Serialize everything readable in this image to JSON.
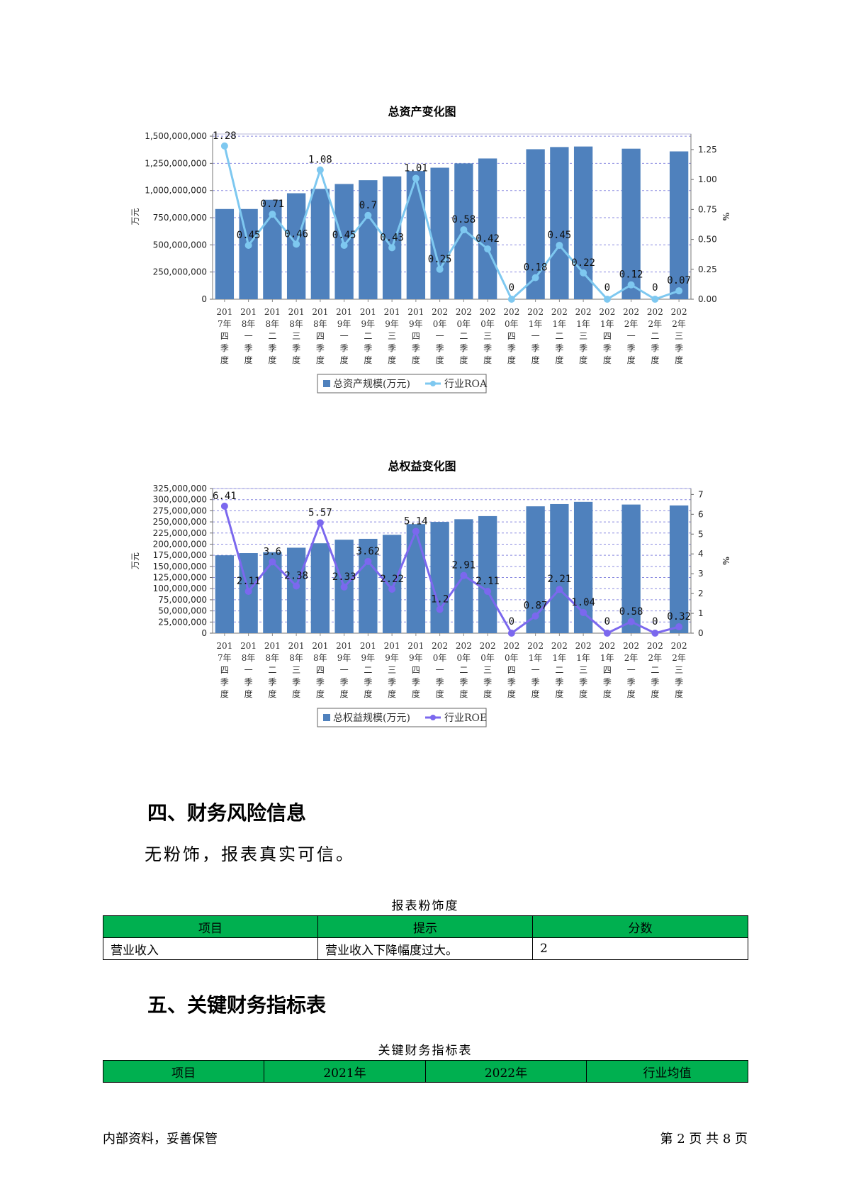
{
  "charts": [
    {
      "title": "总资产变化图",
      "left_unit": "万元",
      "right_unit": "%",
      "categories": [
        "2017年四季度",
        "2018年一季度",
        "2018年二季度",
        "2018年三季度",
        "2018年四季度",
        "2019年一季度",
        "2019年二季度",
        "2019年三季度",
        "2019年四季度",
        "2020年一季度",
        "2020年二季度",
        "2020年三季度",
        "2020年四季度",
        "2021年一季度",
        "2021年二季度",
        "2021年三季度",
        "2021年四季度",
        "2022年一季度",
        "2022年二季度",
        "2022年三季度"
      ],
      "x_tick_lines": [
        [
          "201",
          "7年",
          "四",
          "季",
          "度"
        ],
        [
          "201",
          "8年",
          "一",
          "季",
          "度"
        ],
        [
          "201",
          "8年",
          "二",
          "季",
          "度"
        ],
        [
          "201",
          "8年",
          "三",
          "季",
          "度"
        ],
        [
          "201",
          "8年",
          "四",
          "季",
          "度"
        ],
        [
          "201",
          "9年",
          "一",
          "季",
          "度"
        ],
        [
          "201",
          "9年",
          "二",
          "季",
          "度"
        ],
        [
          "201",
          "9年",
          "三",
          "季",
          "度"
        ],
        [
          "201",
          "9年",
          "四",
          "季",
          "度"
        ],
        [
          "202",
          "0年",
          "一",
          "季",
          "度"
        ],
        [
          "202",
          "0年",
          "二",
          "季",
          "度"
        ],
        [
          "202",
          "0年",
          "三",
          "季",
          "度"
        ],
        [
          "202",
          "0年",
          "四",
          "季",
          "度"
        ],
        [
          "202",
          "1年",
          "一",
          "季",
          "度"
        ],
        [
          "202",
          "1年",
          "二",
          "季",
          "度"
        ],
        [
          "202",
          "1年",
          "三",
          "季",
          "度"
        ],
        [
          "202",
          "1年",
          "四",
          "季",
          "度"
        ],
        [
          "202",
          "2年",
          "一",
          "季",
          "度"
        ],
        [
          "202",
          "2年",
          "二",
          "季",
          "度"
        ],
        [
          "202",
          "2年",
          "三",
          "季",
          "度"
        ]
      ],
      "bar_series": {
        "name": "总资产规模(万元)",
        "color": "#4f81bd",
        "values": [
          830000000,
          830000000,
          915000000,
          975000000,
          1015000000,
          1060000000,
          1095000000,
          1130000000,
          1180000000,
          1210000000,
          1250000000,
          1295000000,
          null,
          1380000000,
          1400000000,
          1405000000,
          null,
          1385000000,
          null,
          1360000000
        ]
      },
      "line_series": {
        "name": "行业ROA",
        "color": "#7ec8f0",
        "values": [
          1.28,
          0.45,
          0.71,
          0.46,
          1.08,
          0.45,
          0.7,
          0.43,
          1.01,
          0.25,
          0.58,
          0.42,
          0,
          0.18,
          0.45,
          0.22,
          0,
          0.12,
          0,
          0.07
        ],
        "labels": [
          "1.28",
          "0.45",
          "0.71",
          "0.46",
          "1.08",
          "0.45",
          "0.7",
          "0.43",
          "1.01",
          "0.25",
          "0.58",
          "0.42",
          "0",
          "0.18",
          "0.45",
          "0.22",
          "0",
          "0.12",
          "0",
          "0.07"
        ]
      },
      "left_ticks": [
        "0",
        "250,000,000",
        "500,000,000",
        "750,000,000",
        "1,000,000,000",
        "1,250,000,000",
        "1,500,000,000"
      ],
      "left_tick_values": [
        0,
        250000000,
        500000000,
        750000000,
        1000000000,
        1250000000,
        1500000000
      ],
      "left_max": 1520000000,
      "right_ticks": [
        "0.00",
        "0.25",
        "0.50",
        "0.75",
        "1.00",
        "1.25"
      ],
      "right_tick_values": [
        0,
        0.25,
        0.5,
        0.75,
        1.0,
        1.25
      ],
      "right_max": 1.38,
      "grid": true
    },
    {
      "title": "总权益变化图",
      "left_unit": "万元",
      "right_unit": "%",
      "categories": [
        "2017年四季度",
        "2018年一季度",
        "2018年二季度",
        "2018年三季度",
        "2018年四季度",
        "2019年一季度",
        "2019年二季度",
        "2019年三季度",
        "2019年四季度",
        "2020年一季度",
        "2020年二季度",
        "2020年三季度",
        "2020年四季度",
        "2021年一季度",
        "2021年二季度",
        "2021年三季度",
        "2021年四季度",
        "2022年一季度",
        "2022年二季度",
        "2022年三季度"
      ],
      "x_tick_lines": [
        [
          "201",
          "7年",
          "四",
          "季",
          "度"
        ],
        [
          "201",
          "8年",
          "一",
          "季",
          "度"
        ],
        [
          "201",
          "8年",
          "二",
          "季",
          "度"
        ],
        [
          "201",
          "8年",
          "三",
          "季",
          "度"
        ],
        [
          "201",
          "8年",
          "四",
          "季",
          "度"
        ],
        [
          "201",
          "9年",
          "一",
          "季",
          "度"
        ],
        [
          "201",
          "9年",
          "二",
          "季",
          "度"
        ],
        [
          "201",
          "9年",
          "三",
          "季",
          "度"
        ],
        [
          "201",
          "9年",
          "四",
          "季",
          "度"
        ],
        [
          "202",
          "0年",
          "一",
          "季",
          "度"
        ],
        [
          "202",
          "0年",
          "二",
          "季",
          "度"
        ],
        [
          "202",
          "0年",
          "三",
          "季",
          "度"
        ],
        [
          "202",
          "0年",
          "四",
          "季",
          "度"
        ],
        [
          "202",
          "1年",
          "一",
          "季",
          "度"
        ],
        [
          "202",
          "1年",
          "二",
          "季",
          "度"
        ],
        [
          "202",
          "1年",
          "三",
          "季",
          "度"
        ],
        [
          "202",
          "1年",
          "四",
          "季",
          "度"
        ],
        [
          "202",
          "2年",
          "一",
          "季",
          "度"
        ],
        [
          "202",
          "2年",
          "二",
          "季",
          "度"
        ],
        [
          "202",
          "2年",
          "三",
          "季",
          "度"
        ]
      ],
      "bar_series": {
        "name": "总权益规模(万元)",
        "color": "#4f81bd",
        "values": [
          175000000,
          180000000,
          182000000,
          192000000,
          202000000,
          210000000,
          212000000,
          221000000,
          245000000,
          250000000,
          256000000,
          263000000,
          null,
          285000000,
          290000000,
          295000000,
          null,
          289000000,
          null,
          287000000
        ]
      },
      "line_series": {
        "name": "行业ROE",
        "color": "#7b68ee",
        "values": [
          6.41,
          2.11,
          3.6,
          2.38,
          5.57,
          2.33,
          3.62,
          2.22,
          5.14,
          1.2,
          2.91,
          2.11,
          0,
          0.87,
          2.21,
          1.04,
          0,
          0.58,
          0,
          0.32
        ],
        "labels": [
          "6.41",
          "2.11",
          "3.6",
          "2.38",
          "5.57",
          "2.33",
          "3.62",
          "2.22",
          "5.14",
          "1.2",
          "2.91",
          "2.11",
          "0",
          "0.87",
          "2.21",
          "1.04",
          "0",
          "0.58",
          "0",
          "0.32"
        ]
      },
      "left_ticks": [
        "0",
        "25,000,000",
        "50,000,000",
        "75,000,000",
        "100,000,000",
        "125,000,000",
        "150,000,000",
        "175,000,000",
        "200,000,000",
        "225,000,000",
        "250,000,000",
        "275,000,000",
        "300,000,000",
        "325,000,000"
      ],
      "left_tick_values": [
        0,
        25000000,
        50000000,
        75000000,
        100000000,
        125000000,
        150000000,
        175000000,
        200000000,
        225000000,
        250000000,
        275000000,
        300000000,
        325000000
      ],
      "left_max": 325000000,
      "right_ticks": [
        "0",
        "1",
        "2",
        "3",
        "4",
        "5",
        "6",
        "7"
      ],
      "right_tick_values": [
        0,
        1,
        2,
        3,
        4,
        5,
        6,
        7
      ],
      "right_max": 7.3,
      "grid": true
    }
  ],
  "section4": {
    "heading": "四、财务风险信息",
    "text": "无粉饰，报表真实可信。",
    "table_caption": "报表粉饰度",
    "headers": [
      "项目",
      "提示",
      "分数"
    ],
    "rows": [
      [
        "营业收入",
        "营业收入下降幅度过大。",
        "2"
      ]
    ]
  },
  "section5": {
    "heading": "五、关键财务指标表",
    "table_caption": "关键财务指标表",
    "headers": [
      "项目",
      "2021年",
      "2022年",
      "行业均值"
    ]
  },
  "footer": {
    "left": "内部资料，妥善保管",
    "right": "第 2 页  共 8 页"
  }
}
